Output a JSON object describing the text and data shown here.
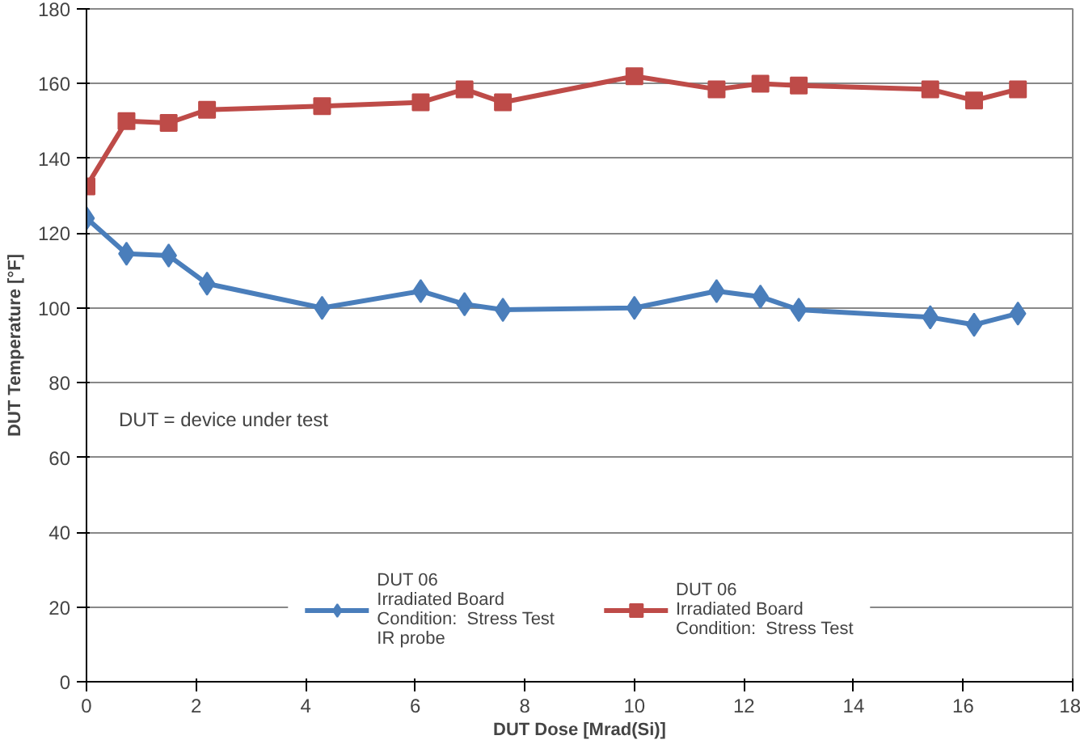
{
  "chart_data": {
    "type": "line",
    "xlabel": "DUT Dose [Mrad(Si)]",
    "ylabel": "DUT Temperature [°F]",
    "x": [
      0,
      0.73,
      1.5,
      2.2,
      4.3,
      6.1,
      6.9,
      7.6,
      10.0,
      11.5,
      12.3,
      13.0,
      15.4,
      16.2,
      17.0
    ],
    "series": [
      {
        "name": "DUT 06\nIrradiated Board\nCondition:  Stress Test\nIR probe",
        "color": "#4a7ebb",
        "marker": "diamond",
        "values": [
          124,
          114.5,
          114,
          106.5,
          100,
          104.5,
          101,
          99.5,
          100,
          104.5,
          103,
          99.5,
          97.5,
          95.5,
          98.5
        ]
      },
      {
        "name": "DUT 06\nIrradiated Board\nCondition:  Stress Test",
        "color": "#be4b48",
        "marker": "square",
        "values": [
          132.5,
          150,
          149.5,
          153,
          154,
          155,
          158.5,
          155,
          162,
          158.5,
          160,
          159.5,
          158.5,
          155.5,
          158.5
        ]
      }
    ],
    "xlim": [
      0,
      18
    ],
    "xticks": [
      0,
      2,
      4,
      6,
      8,
      10,
      12,
      14,
      16,
      18
    ],
    "ylim": [
      0,
      180
    ],
    "yticks": [
      0,
      20,
      40,
      60,
      80,
      100,
      120,
      140,
      160,
      180
    ],
    "grid": "y",
    "legend": "bottom",
    "line_style": "solid",
    "annotations": [
      "DUT = device under test"
    ]
  }
}
